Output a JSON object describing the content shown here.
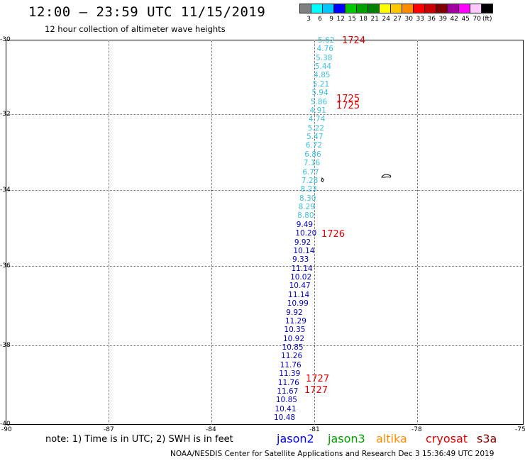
{
  "title": "12:00 – 23:59 UTC 11/15/2019",
  "subtitle": "12 hour collection of altimeter wave heights",
  "legend": {
    "colors": [
      "#808080",
      "#00ffff",
      "#00c8ff",
      "#0000ff",
      "#00c800",
      "#00a000",
      "#008000",
      "#ffff00",
      "#ffc800",
      "#ff8c00",
      "#ff0000",
      "#c80000",
      "#800000",
      "#a000a0",
      "#ff00ff",
      "#ffc8ff",
      "#000000"
    ],
    "labels": [
      "3",
      "6",
      "9",
      "12",
      "15",
      "18",
      "21",
      "24",
      "27",
      "30",
      "33",
      "36",
      "39",
      "42",
      "45",
      "70"
    ],
    "unit": "(ft)"
  },
  "axes": {
    "lat_ticks": [
      "-30",
      "-32",
      "-34",
      "-36",
      "-38",
      "-40"
    ],
    "lon_ticks": [
      "-90",
      "-87",
      "-84",
      "-81",
      "-78",
      "-75"
    ]
  },
  "jason2_color": "#0000c0",
  "cryosat_color": "#3ec0e0",
  "swh_readings": [
    {
      "v": "5.62",
      "c": "cyan"
    },
    {
      "v": "4.76",
      "c": "cyan"
    },
    {
      "v": "5.38",
      "c": "cyan"
    },
    {
      "v": "5.44",
      "c": "cyan"
    },
    {
      "v": "4.85",
      "c": "cyan"
    },
    {
      "v": "5.21",
      "c": "cyan"
    },
    {
      "v": "5.94",
      "c": "cyan"
    },
    {
      "v": "5.86",
      "c": "cyan"
    },
    {
      "v": "4.91",
      "c": "cyan"
    },
    {
      "v": "4.74",
      "c": "cyan"
    },
    {
      "v": "5.22",
      "c": "cyan"
    },
    {
      "v": "5.47",
      "c": "cyan"
    },
    {
      "v": "6.72",
      "c": "cyan"
    },
    {
      "v": "6.86",
      "c": "cyan"
    },
    {
      "v": "7.16",
      "c": "cyan"
    },
    {
      "v": "6.77",
      "c": "cyan"
    },
    {
      "v": "7.28",
      "c": "cyan"
    },
    {
      "v": "8.23",
      "c": "cyan"
    },
    {
      "v": "8.30",
      "c": "cyan"
    },
    {
      "v": "8.29",
      "c": "cyan"
    },
    {
      "v": "8.80",
      "c": "cyan"
    },
    {
      "v": "9.49",
      "c": "blue"
    },
    {
      "v": "10.20",
      "c": "blue"
    },
    {
      "v": "9.92",
      "c": "blue"
    },
    {
      "v": "10.14",
      "c": "blue"
    },
    {
      "v": "9.33",
      "c": "blue"
    },
    {
      "v": "11.14",
      "c": "blue"
    },
    {
      "v": "10.02",
      "c": "blue"
    },
    {
      "v": "10.47",
      "c": "blue"
    },
    {
      "v": "11.14",
      "c": "blue"
    },
    {
      "v": "10.99",
      "c": "blue"
    },
    {
      "v": "9.92",
      "c": "blue"
    },
    {
      "v": "11.29",
      "c": "blue"
    },
    {
      "v": "10.35",
      "c": "blue"
    },
    {
      "v": "10.92",
      "c": "blue"
    },
    {
      "v": "10.85",
      "c": "blue"
    },
    {
      "v": "11.26",
      "c": "blue"
    },
    {
      "v": "11.76",
      "c": "blue"
    },
    {
      "v": "11.39",
      "c": "blue"
    },
    {
      "v": "11.76",
      "c": "blue"
    },
    {
      "v": "11.67",
      "c": "blue"
    },
    {
      "v": "10.85",
      "c": "blue"
    },
    {
      "v": "10.41",
      "c": "blue"
    },
    {
      "v": "10.48",
      "c": "blue"
    }
  ],
  "time_labels": [
    "1724",
    "1725",
    "1725",
    "1726",
    "1727",
    "1727"
  ],
  "note": "note: 1) Time is in UTC; 2) SWH is in feet",
  "satellites": [
    {
      "name": "jason2",
      "color": "#0000ff"
    },
    {
      "name": "jason3",
      "color": "#00a000"
    },
    {
      "name": "altika",
      "color": "#ff8c00"
    },
    {
      "name": "cryosat",
      "color": "#e00000"
    },
    {
      "name": "s3a",
      "color": "#8b0000"
    }
  ],
  "credit": "NOAA/NESDIS Center for Satellite Applications and Research   Dec  3 15:36:49 UTC 2019"
}
